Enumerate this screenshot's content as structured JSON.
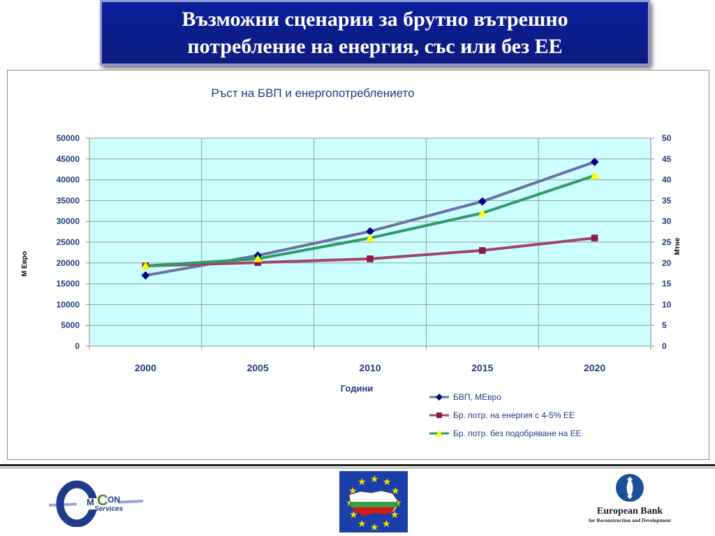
{
  "slide": {
    "title_line1": "Възможни сценарии за брутно вътрешно",
    "title_line2": "потребление на енергия, със или без ЕЕ"
  },
  "chart_data": {
    "type": "line",
    "title": "Ръст на БВП и енергопотреблението",
    "xlabel": "Години",
    "ylabel_left": "М Евро",
    "ylabel_right": "Мтне",
    "categories": [
      "2000",
      "2005",
      "2010",
      "2015",
      "2020"
    ],
    "y_left_range": [
      0,
      50000
    ],
    "y_left_ticks": [
      "0",
      "5000",
      "10000",
      "15000",
      "20000",
      "25000",
      "30000",
      "35000",
      "40000",
      "45000",
      "50000"
    ],
    "y_right_range": [
      0,
      50
    ],
    "y_right_ticks": [
      "0",
      "5",
      "10",
      "15",
      "20",
      "25",
      "30",
      "35",
      "40",
      "45",
      "50"
    ],
    "grid": true,
    "plot_background": "#ccffff",
    "legend_position": "bottom-right",
    "series": [
      {
        "name": "БВП, МЕвро",
        "axis": "left",
        "color": "#6b6fa3",
        "marker_color": "#000080",
        "marker": "diamond",
        "values": [
          17000,
          21800,
          27600,
          34800,
          44300
        ]
      },
      {
        "name": "Бр. потр. на енергия с 4-5% ЕЕ",
        "axis": "right",
        "color": "#a0456a",
        "marker_color": "#8b1a4a",
        "marker": "square",
        "values": [
          19.3,
          20.1,
          21.0,
          23.0,
          26.0
        ]
      },
      {
        "name": "Бр. потр. без подобряване на ЕЕ",
        "axis": "right",
        "color": "#2e9a6a",
        "marker_color": "#ffff00",
        "marker": "triangle",
        "values": [
          19.3,
          21.0,
          26.0,
          32.0,
          41.0
        ]
      }
    ]
  },
  "footer": {
    "emcon_logo_text_top": "ON",
    "emcon_logo_text_bottom": "Services",
    "ebrd_line1": "European Bank",
    "ebrd_line2": "for Reconstruction and Development"
  }
}
